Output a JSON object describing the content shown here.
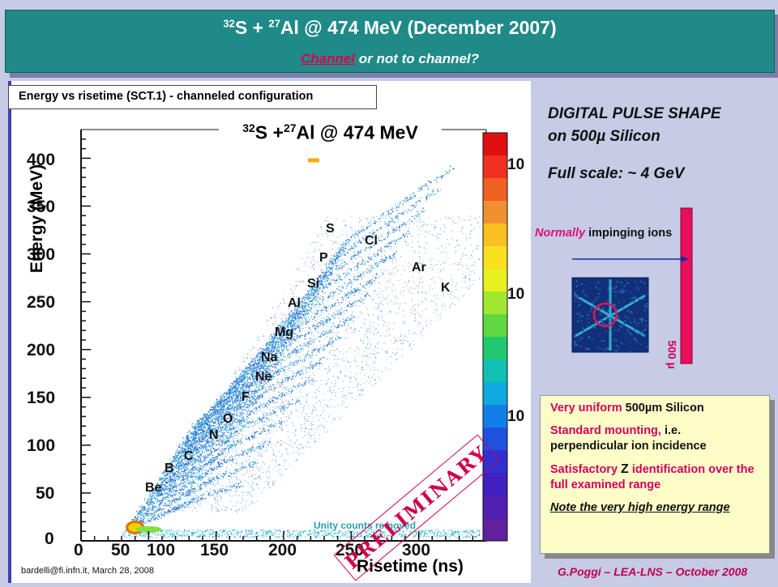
{
  "slide": {
    "title_mass": "32",
    "title_s": "S + ",
    "title_mass2": "27",
    "title_rest": "Al @ 474 MeV  (December 2007)",
    "subtitle_link": "Channel",
    "subtitle_rest": " or not to channel?"
  },
  "plot": {
    "header": "Energy vs risetime (SCT.1) - channeled configuration",
    "reaction_mass": "32",
    "reaction_s": "S +",
    "reaction_mass2": "27",
    "reaction_rest": "Al @ 474 MeV",
    "ylabel": "Energy (MeV)",
    "xlabel": "Risetime (ns)",
    "x_ticks": [
      "0",
      "50",
      "100",
      "150",
      "200",
      "250",
      "300"
    ],
    "y_ticks": [
      "0",
      "50",
      "100",
      "150",
      "200",
      "250",
      "300",
      "350",
      "400"
    ],
    "colorbar_ticks": [
      "10",
      "10",
      "10"
    ],
    "element_labels": [
      "Be",
      "B",
      "C",
      "N",
      "O",
      "F",
      "Ne",
      "Na",
      "Mg",
      "Al",
      "Si",
      "P",
      "S",
      "Cl",
      "Ar",
      "K"
    ],
    "note": "Unity counts removed",
    "stamp": "PRELIMINARY",
    "credit": "bardelli@fi.infn.it, March 28, 2008"
  },
  "right": {
    "dps_line1": "DIGITAL PULSE SHAPE",
    "dps_line2": "on 500µ Silicon",
    "full_scale": "Full scale: ~ 4 GeV",
    "normally": "Normally",
    "impinging": " impinging ions",
    "detector_label": "500 µ"
  },
  "info": {
    "p1a": "Very uniform ",
    "p1b": "500µm Silicon",
    "p2a": "Standard mounting, ",
    "p2b": "i.e. perpendicular ion incidence",
    "p3a": "Satisfactory ",
    "p3b": "Z",
    "p3c": " identification over the full examined range",
    "p4": "Note the very high energy range"
  },
  "footer": "G.Poggi – LEA-LNS – October 2008"
}
